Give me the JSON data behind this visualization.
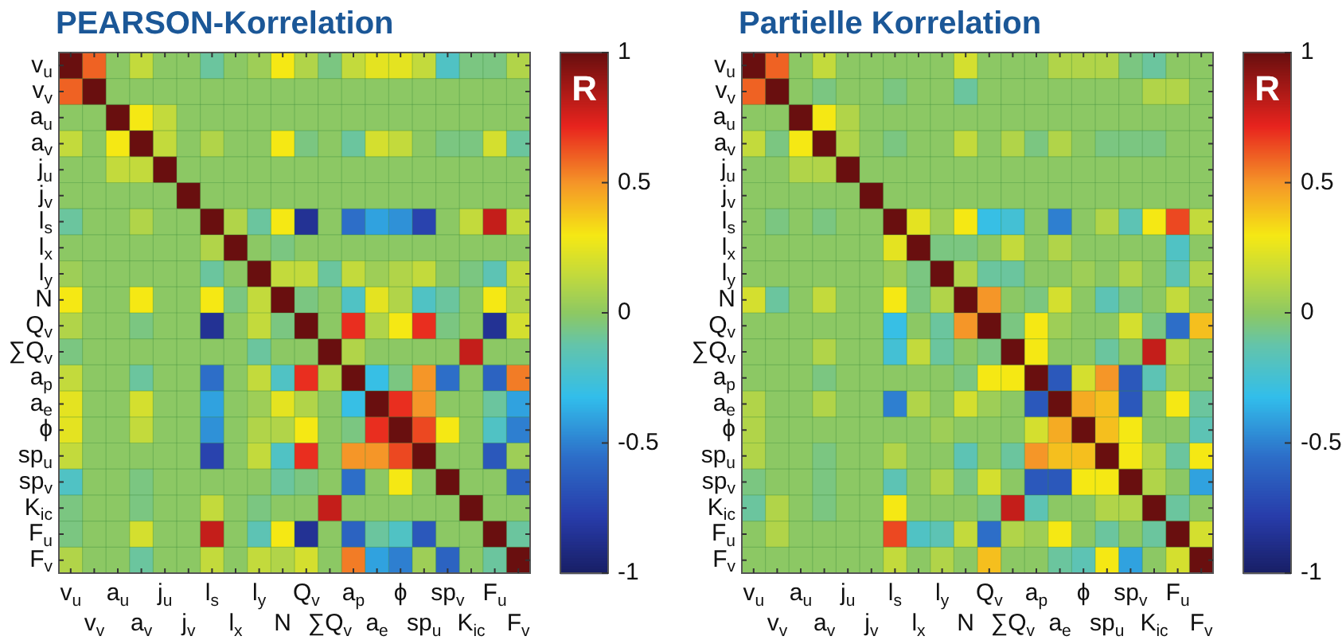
{
  "chart_data": [
    {
      "type": "heatmap",
      "title": "PEARSON-Korrelation",
      "clabel": "R",
      "clim": [
        -1,
        1
      ],
      "cticks": [
        -1,
        -0.5,
        0,
        0.5,
        1
      ],
      "grid": true,
      "categories": [
        "v$_{u}$",
        "v$_{v}$",
        "a$_{u}$",
        "a$_{v}$",
        "j$_{u}$",
        "j$_{v}$",
        "l$_{s}$",
        "l$_{x}$",
        "l$_{y}$",
        "N",
        "Q$_{v}$",
        "∑Q$_{v}$",
        "a$_{p}$",
        "a$_{e}$",
        "ϕ",
        "sp$_{u}$",
        "sp$_{v}$",
        "K$_{ic}$",
        "F$_{u}$",
        "F$_{v}$"
      ],
      "y_categories": [
        "v$_{u}$",
        "v$_{v}$",
        "a$_{u}$",
        "a$_{v}$",
        "j$_{u}$",
        "j$_{v}$",
        "l$_{s}$",
        "l$_{x}$",
        "l$_{y}$",
        "N",
        "Q$_{v}$",
        "∑Q$_{v}$",
        "a$_{p}$",
        "a$_{e}$",
        "ϕ",
        "sp$_{u}$",
        "sp$_{v}$",
        "K$_{ic}$",
        "F$_{u}$",
        "F$_{v}$"
      ],
      "cells": [
        [
          1,
          0.6,
          0,
          0.15,
          0,
          0,
          -0.1,
          0,
          0.05,
          0.3,
          0.1,
          -0.05,
          0.15,
          0.25,
          0.25,
          0.15,
          -0.2,
          -0.05,
          -0.05,
          0.1
        ],
        [
          0.6,
          1,
          0,
          0,
          0,
          0,
          0,
          0,
          0,
          0,
          0,
          0,
          0,
          0,
          0,
          0,
          0,
          0,
          0,
          0
        ],
        [
          0,
          0,
          1,
          0.3,
          0.15,
          0,
          0,
          0,
          0,
          0,
          0,
          0,
          0,
          0,
          0,
          0,
          0,
          0,
          0,
          0
        ],
        [
          0.15,
          0,
          0.3,
          1,
          0.15,
          0,
          0.1,
          0,
          0,
          0.3,
          -0.05,
          0,
          -0.1,
          0.2,
          0.15,
          0,
          -0.05,
          -0.05,
          0.2,
          -0.1
        ],
        [
          0,
          0,
          0.15,
          0.15,
          1,
          0,
          0,
          0,
          0,
          0,
          0,
          0,
          0,
          0,
          0,
          0,
          0,
          0,
          0,
          0
        ],
        [
          0,
          0,
          0,
          0,
          0,
          1,
          0,
          0,
          0,
          0,
          0,
          0,
          0,
          0,
          0,
          0,
          0,
          0,
          0,
          0
        ],
        [
          -0.1,
          0,
          0,
          0.1,
          0,
          0,
          1,
          0.1,
          -0.1,
          0.3,
          -0.85,
          0,
          -0.55,
          -0.4,
          -0.45,
          -0.75,
          0,
          0.15,
          0.8,
          0.15
        ],
        [
          0,
          0,
          0,
          0,
          0,
          0,
          0.1,
          1,
          0,
          -0.05,
          0,
          0,
          0,
          0,
          0,
          0,
          0,
          0,
          0,
          0
        ],
        [
          0.05,
          0,
          0,
          0,
          0,
          0,
          -0.1,
          0,
          1,
          0.15,
          0.15,
          -0.1,
          0.15,
          0.05,
          0.1,
          0.15,
          0,
          -0.05,
          -0.15,
          0.15
        ],
        [
          0.3,
          0,
          0,
          0.3,
          0,
          0,
          0.3,
          -0.05,
          0.15,
          1,
          -0.05,
          0,
          -0.2,
          0.25,
          0.1,
          -0.2,
          -0.1,
          0,
          0.3,
          0.1
        ],
        [
          0.1,
          0,
          0,
          -0.05,
          0,
          0,
          -0.85,
          0,
          0.15,
          -0.05,
          1,
          0,
          0.7,
          0.1,
          0.3,
          0.7,
          -0.05,
          0,
          -0.85,
          0.2
        ],
        [
          -0.05,
          0,
          0,
          0,
          0,
          0,
          0,
          0,
          -0.1,
          0,
          0,
          1,
          0.1,
          0,
          0,
          0,
          0,
          0.8,
          0,
          0
        ],
        [
          0.15,
          0,
          0,
          -0.1,
          0,
          0,
          -0.55,
          0,
          0.15,
          -0.2,
          0.7,
          0.1,
          1,
          -0.3,
          -0.05,
          0.5,
          -0.55,
          0,
          -0.6,
          0.55
        ],
        [
          0.25,
          0,
          0,
          0.2,
          0,
          0,
          -0.4,
          0,
          0.05,
          0.25,
          0.1,
          0,
          -0.3,
          1,
          0.7,
          0.5,
          0,
          0,
          -0.1,
          -0.4
        ],
        [
          0.25,
          0,
          0,
          0.15,
          0,
          0,
          -0.45,
          0,
          0.1,
          0.1,
          0.3,
          0,
          -0.05,
          0.7,
          1,
          0.65,
          0.3,
          0,
          -0.2,
          -0.5
        ],
        [
          0.15,
          0,
          0,
          0,
          0,
          0,
          -0.75,
          0,
          0.15,
          -0.2,
          0.7,
          0,
          0.5,
          0.5,
          0.65,
          1,
          0,
          0,
          -0.65,
          0.05
        ],
        [
          -0.2,
          0,
          0,
          -0.05,
          0,
          0,
          0,
          0,
          0,
          -0.1,
          -0.05,
          0,
          -0.55,
          0,
          0.3,
          0,
          1,
          0,
          0,
          -0.6
        ],
        [
          -0.05,
          0,
          0,
          -0.05,
          0,
          0,
          0.15,
          0,
          -0.05,
          0,
          0,
          0.8,
          0,
          0,
          0,
          0,
          0,
          1,
          0,
          0
        ],
        [
          -0.05,
          0,
          0,
          0.2,
          0,
          0,
          0.8,
          0,
          -0.15,
          0.3,
          -0.85,
          0,
          -0.6,
          -0.1,
          -0.2,
          -0.65,
          0,
          0,
          1,
          -0.1
        ],
        [
          0.1,
          0,
          0,
          -0.1,
          0,
          0,
          0.15,
          0,
          0.15,
          0.1,
          0.2,
          0,
          0.55,
          -0.4,
          -0.5,
          0.05,
          -0.6,
          0,
          -0.1,
          1
        ]
      ]
    },
    {
      "type": "heatmap",
      "title": "Partielle Korrelation",
      "clabel": "R",
      "clim": [
        -1,
        1
      ],
      "cticks": [
        -1,
        -0.5,
        0,
        0.5,
        1
      ],
      "grid": true,
      "categories": [
        "v$_{u}$",
        "v$_{v}$",
        "a$_{u}$",
        "a$_{v}$",
        "j$_{u}$",
        "j$_{v}$",
        "l$_{s}$",
        "l$_{x}$",
        "l$_{y}$",
        "N",
        "Q$_{v}$",
        "∑Q$_{v}$",
        "a$_{p}$",
        "a$_{e}$",
        "ϕ",
        "sp$_{u}$",
        "sp$_{v}$",
        "K$_{ic}$",
        "F$_{u}$",
        "F$_{v}$"
      ],
      "y_categories": [
        "v$_{u}$",
        "v$_{v}$",
        "a$_{u}$",
        "a$_{v}$",
        "j$_{u}$",
        "j$_{v}$",
        "l$_{s}$",
        "l$_{x}$",
        "l$_{y}$",
        "N",
        "Q$_{v}$",
        "∑Q$_{v}$",
        "a$_{p}$",
        "a$_{e}$",
        "ϕ",
        "sp$_{u}$",
        "sp$_{v}$",
        "K$_{ic}$",
        "F$_{u}$",
        "F$_{v}$"
      ],
      "cells": [
        [
          1,
          0.6,
          0,
          0.15,
          0,
          0,
          0,
          0,
          0,
          0.2,
          0,
          0,
          0,
          0.1,
          0.1,
          0.1,
          -0.05,
          -0.1,
          0,
          0
        ],
        [
          0.6,
          1,
          0,
          -0.05,
          0,
          0,
          -0.05,
          0,
          0,
          -0.1,
          0,
          0,
          0,
          0,
          0,
          0,
          0,
          0.1,
          0.1,
          0
        ],
        [
          0,
          0,
          1,
          0.3,
          0.1,
          0,
          0,
          0,
          0,
          0,
          0,
          0,
          0,
          0,
          0,
          0,
          0,
          0,
          0,
          0
        ],
        [
          0.15,
          -0.05,
          0.3,
          1,
          0.1,
          0,
          -0.05,
          0,
          0,
          0.15,
          0,
          0.1,
          -0.05,
          0.1,
          0,
          -0.05,
          -0.05,
          -0.05,
          0,
          0
        ],
        [
          0,
          0,
          0.1,
          0.1,
          1,
          0,
          0,
          0,
          0,
          0,
          0,
          0,
          0,
          0,
          0,
          0,
          0,
          0,
          0,
          0
        ],
        [
          0,
          0,
          0,
          0,
          0,
          1,
          0,
          0,
          0,
          0,
          0,
          0,
          0,
          0,
          0,
          0,
          0,
          0,
          0,
          0
        ],
        [
          0,
          -0.05,
          0,
          -0.05,
          0,
          0,
          1,
          0.25,
          0.05,
          0.3,
          -0.3,
          -0.25,
          0,
          -0.5,
          0,
          0.1,
          -0.15,
          0.3,
          0.65,
          0.15
        ],
        [
          0,
          0,
          0,
          0,
          0,
          0,
          0.25,
          1,
          -0.05,
          -0.05,
          0,
          0.15,
          0,
          0.1,
          0,
          0,
          0,
          0,
          -0.2,
          0
        ],
        [
          0,
          0,
          0,
          0,
          0,
          0,
          0.05,
          -0.05,
          1,
          0.1,
          -0.1,
          -0.1,
          0,
          0,
          0.05,
          0,
          0.1,
          0,
          -0.15,
          0.1
        ],
        [
          0.2,
          -0.1,
          0,
          0.15,
          0,
          0,
          0.3,
          -0.05,
          0.1,
          1,
          0.5,
          0,
          -0.05,
          0.2,
          0,
          -0.15,
          -0.05,
          0,
          0.15,
          0
        ],
        [
          0,
          0,
          0,
          0,
          0,
          0,
          -0.3,
          0,
          -0.1,
          0.5,
          1,
          -0.05,
          0.3,
          0.05,
          0,
          0,
          0.2,
          -0.05,
          -0.55,
          0.4
        ],
        [
          0,
          0,
          0,
          0.1,
          0,
          0,
          -0.25,
          0.15,
          -0.1,
          0,
          -0.05,
          1,
          0.3,
          0,
          0,
          -0.1,
          0,
          0.8,
          0.1,
          0
        ],
        [
          0,
          0,
          0,
          -0.05,
          0,
          0,
          0,
          0,
          0,
          -0.05,
          0.3,
          0.3,
          1,
          -0.65,
          0.2,
          0.5,
          -0.65,
          -0.15,
          0.05,
          0
        ],
        [
          0.1,
          0,
          0,
          0.1,
          0,
          0,
          -0.5,
          0.1,
          0,
          0.2,
          0.05,
          0,
          -0.65,
          1,
          0.45,
          0.4,
          -0.65,
          0,
          0.3,
          -0.1
        ],
        [
          0.1,
          0,
          0,
          0,
          0,
          0,
          0,
          0,
          0.05,
          0,
          0,
          0,
          0.2,
          0.45,
          1,
          0.4,
          0.3,
          0,
          0,
          -0.15
        ],
        [
          0.1,
          0,
          0,
          -0.05,
          0,
          0,
          0.1,
          0,
          0,
          -0.15,
          0,
          -0.1,
          0.5,
          0.4,
          0.4,
          1,
          0.3,
          0.1,
          -0.1,
          0.3
        ],
        [
          -0.05,
          0,
          0,
          -0.05,
          0,
          0,
          -0.15,
          0,
          0.1,
          -0.05,
          0.2,
          0,
          -0.65,
          -0.65,
          0.3,
          0.3,
          1,
          0.1,
          0,
          -0.4
        ],
        [
          -0.1,
          0.1,
          0,
          -0.05,
          0,
          0,
          0.3,
          0,
          0,
          0,
          -0.05,
          0.8,
          -0.15,
          0,
          0,
          0.1,
          0.1,
          1,
          -0.1,
          0
        ],
        [
          0,
          0.1,
          0,
          0,
          0,
          0,
          0.65,
          -0.2,
          -0.15,
          0.15,
          -0.55,
          0.1,
          0.05,
          0.3,
          0,
          -0.1,
          0,
          -0.1,
          1,
          0.2
        ],
        [
          0,
          0,
          0,
          0,
          0,
          0,
          0.15,
          0,
          0.1,
          0,
          0.4,
          0,
          0,
          -0.1,
          -0.15,
          0.3,
          -0.4,
          0,
          0.2,
          1
        ]
      ]
    }
  ]
}
